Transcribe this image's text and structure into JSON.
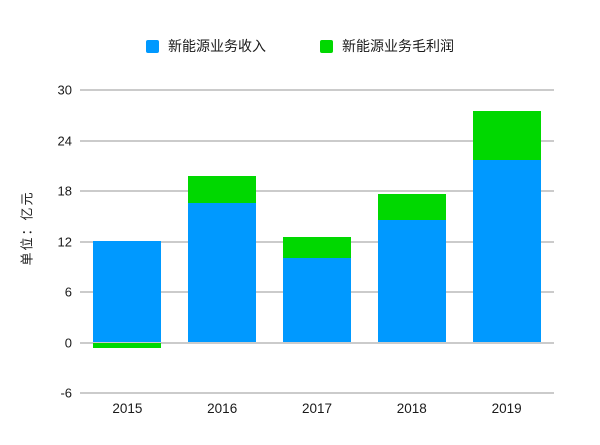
{
  "page": {
    "background": "#ffffff",
    "text_color": "#1a1a1a",
    "gridline_color": "#cbcbcb"
  },
  "chart_data": {
    "type": "bar",
    "stacked": true,
    "title": "",
    "categories": [
      "2015",
      "2016",
      "2017",
      "2018",
      "2019"
    ],
    "series": [
      {
        "id": "revenue",
        "name": "新能源业务收入",
        "color": "#0099ff",
        "values": [
          12.1,
          16.6,
          10.0,
          14.5,
          21.7
        ]
      },
      {
        "id": "gross-profit",
        "name": "新能源业务毛利润",
        "color": "#00d800",
        "values": [
          -0.6,
          3.2,
          2.5,
          3.2,
          5.8
        ]
      }
    ],
    "xlabel": "",
    "ylabel": "单位：亿元",
    "ylim": [
      -6,
      30
    ],
    "yticks": [
      30,
      24,
      18,
      12,
      6,
      0,
      -6
    ],
    "grid": true,
    "legend_position": "top-center"
  }
}
